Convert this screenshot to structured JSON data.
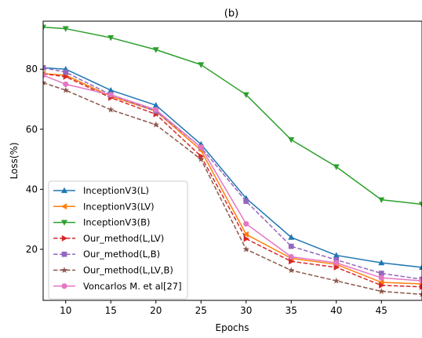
{
  "chart_data": {
    "type": "line",
    "title": "(b)",
    "xlabel": "Epochs",
    "ylabel": "Loss(%)",
    "xlim": [
      7.5,
      49.5
    ],
    "ylim": [
      3,
      96
    ],
    "xticks": [
      10,
      15,
      20,
      25,
      30,
      35,
      40,
      45
    ],
    "yticks": [
      20,
      40,
      60,
      80
    ],
    "legend_position": "lower-left",
    "x": [
      7.5,
      10,
      15,
      20,
      25,
      30,
      35,
      40,
      45,
      49.5
    ],
    "series": [
      {
        "name": "InceptionV3(L)",
        "color": "#1f77b4",
        "marker": "triangle-up",
        "dash": "solid",
        "values": [
          80.5,
          80,
          73,
          68,
          55,
          37,
          24,
          18,
          15.5,
          14
        ]
      },
      {
        "name": "InceptionV3(LV)",
        "color": "#ff7f0e",
        "marker": "triangle-left",
        "dash": "solid",
        "values": [
          78.5,
          78,
          71,
          66,
          53,
          25,
          17,
          15,
          9,
          8.5
        ]
      },
      {
        "name": "InceptionV3(B)",
        "color": "#2ca02c",
        "marker": "triangle-down",
        "dash": "solid",
        "values": [
          94,
          93.5,
          90.5,
          86.5,
          81.5,
          71.5,
          56.5,
          47.5,
          36.5,
          35
        ]
      },
      {
        "name": "Our_method(L,LV)",
        "color": "#d62728",
        "marker": "triangle-right",
        "dash": "dashed",
        "values": [
          78.5,
          77.5,
          70.5,
          65,
          51,
          23.5,
          16,
          14,
          8,
          7.5
        ]
      },
      {
        "name": "Our_method(L,B)",
        "color": "#9467bd",
        "marker": "square",
        "dash": "dashed",
        "values": [
          80.5,
          79,
          71.5,
          66,
          54,
          36,
          21,
          16.5,
          12,
          10
        ]
      },
      {
        "name": "Our_method(L,LV,B)",
        "color": "#8c564b",
        "marker": "star",
        "dash": "dashed",
        "values": [
          75.5,
          73,
          66.5,
          61.5,
          50,
          20,
          13,
          9.5,
          6,
          5
        ]
      },
      {
        "name": "Voncarlos M. et al[27]",
        "color": "#e377c2",
        "marker": "circle",
        "dash": "solid",
        "values": [
          78,
          75,
          71.5,
          66.5,
          54,
          28.5,
          17.5,
          15.5,
          10.5,
          9.5
        ]
      }
    ]
  }
}
